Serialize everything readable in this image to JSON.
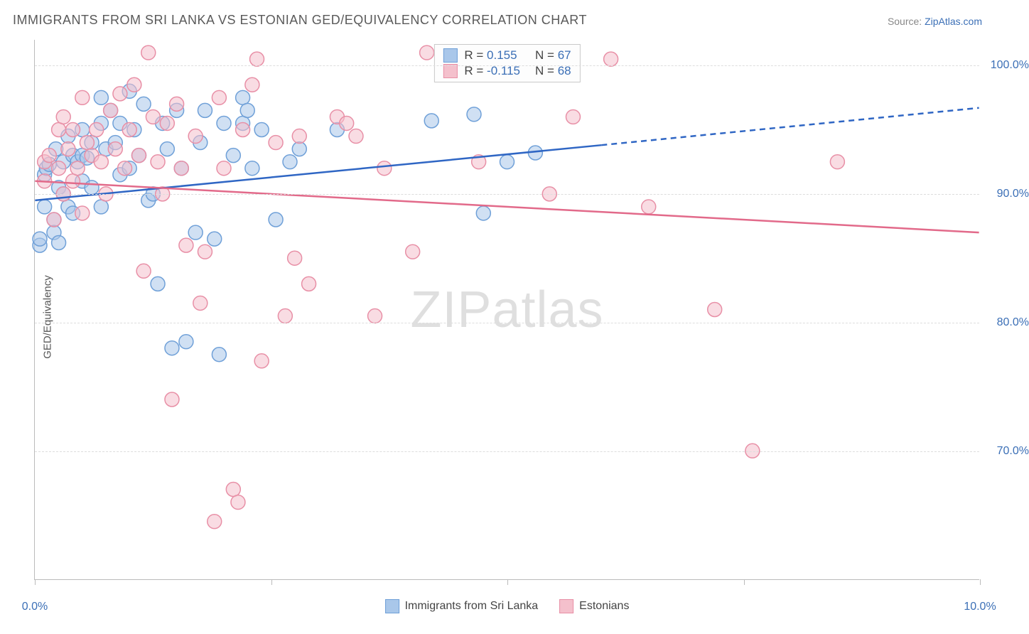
{
  "title": "IMMIGRANTS FROM SRI LANKA VS ESTONIAN GED/EQUIVALENCY CORRELATION CHART",
  "source_label": "Source: ",
  "source_link": "ZipAtlas.com",
  "ylabel": "GED/Equivalency",
  "watermark_a": "ZIP",
  "watermark_b": "atlas",
  "chart": {
    "type": "scatter",
    "background_color": "#ffffff",
    "grid_color": "#dddddd",
    "axis_color": "#bbbbbb",
    "text_color": "#555555",
    "tick_label_color": "#3b6fb6",
    "xlim": [
      0,
      10
    ],
    "ylim": [
      60,
      102
    ],
    "xtick_positions": [
      0,
      2.5,
      5.0,
      7.5,
      10.0
    ],
    "xtick_labels": [
      "0.0%",
      "",
      "",
      "",
      "10.0%"
    ],
    "ytick_positions": [
      70,
      80,
      90,
      100
    ],
    "ytick_labels": [
      "70.0%",
      "80.0%",
      "90.0%",
      "100.0%"
    ],
    "marker_radius": 10,
    "marker_opacity": 0.55,
    "line_width": 2.5,
    "title_fontsize": 18,
    "tick_fontsize": 16,
    "label_fontsize": 15
  },
  "series": [
    {
      "name": "Immigrants from Sri Lanka",
      "color_fill": "#a9c7ea",
      "color_stroke": "#6fa0d8",
      "line_color": "#2f66c4",
      "R_label": "R = ",
      "R": "0.155",
      "N_label": "N = ",
      "N": "67",
      "trend": {
        "x1": 0,
        "y1": 89.5,
        "x2_solid": 6.0,
        "y2_solid": 93.8,
        "x2": 10.0,
        "y2": 96.7
      },
      "points": [
        [
          0.05,
          86.0
        ],
        [
          0.05,
          86.5
        ],
        [
          0.1,
          89.0
        ],
        [
          0.1,
          91.5
        ],
        [
          0.12,
          92.0
        ],
        [
          0.15,
          92.3
        ],
        [
          0.2,
          88.0
        ],
        [
          0.2,
          87.0
        ],
        [
          0.22,
          93.5
        ],
        [
          0.25,
          90.5
        ],
        [
          0.25,
          86.2
        ],
        [
          0.3,
          92.5
        ],
        [
          0.3,
          90.0
        ],
        [
          0.35,
          94.5
        ],
        [
          0.35,
          89.0
        ],
        [
          0.4,
          93.0
        ],
        [
          0.4,
          88.5
        ],
        [
          0.45,
          92.5
        ],
        [
          0.5,
          95.0
        ],
        [
          0.5,
          93.0
        ],
        [
          0.5,
          91.0
        ],
        [
          0.55,
          92.8
        ],
        [
          0.6,
          94.0
        ],
        [
          0.6,
          90.5
        ],
        [
          0.7,
          97.5
        ],
        [
          0.7,
          95.5
        ],
        [
          0.7,
          89.0
        ],
        [
          0.75,
          93.5
        ],
        [
          0.8,
          96.5
        ],
        [
          0.85,
          94.0
        ],
        [
          0.9,
          95.5
        ],
        [
          0.9,
          91.5
        ],
        [
          1.0,
          98.0
        ],
        [
          1.0,
          92.0
        ],
        [
          1.05,
          95.0
        ],
        [
          1.1,
          93.0
        ],
        [
          1.15,
          97.0
        ],
        [
          1.2,
          89.5
        ],
        [
          1.25,
          90.0
        ],
        [
          1.3,
          83.0
        ],
        [
          1.35,
          95.5
        ],
        [
          1.4,
          93.5
        ],
        [
          1.45,
          78.0
        ],
        [
          1.5,
          96.5
        ],
        [
          1.55,
          92.0
        ],
        [
          1.6,
          78.5
        ],
        [
          1.7,
          87.0
        ],
        [
          1.75,
          94.0
        ],
        [
          1.8,
          96.5
        ],
        [
          1.9,
          86.5
        ],
        [
          1.95,
          77.5
        ],
        [
          2.0,
          95.5
        ],
        [
          2.1,
          93.0
        ],
        [
          2.2,
          95.5
        ],
        [
          2.2,
          97.5
        ],
        [
          2.25,
          96.5
        ],
        [
          2.3,
          92.0
        ],
        [
          2.4,
          95.0
        ],
        [
          2.55,
          88.0
        ],
        [
          2.7,
          92.5
        ],
        [
          2.8,
          93.5
        ],
        [
          3.2,
          95.0
        ],
        [
          4.2,
          95.7
        ],
        [
          4.65,
          96.2
        ],
        [
          4.75,
          88.5
        ],
        [
          5.0,
          92.5
        ],
        [
          5.3,
          93.2
        ]
      ]
    },
    {
      "name": "Estonians",
      "color_fill": "#f4c0cc",
      "color_stroke": "#e88fa6",
      "line_color": "#e26a8a",
      "R_label": "R = ",
      "R": "-0.115",
      "N_label": "N = ",
      "N": "68",
      "trend": {
        "x1": 0,
        "y1": 91.0,
        "x2_solid": 10.0,
        "y2_solid": 87.0,
        "x2": 10.0,
        "y2": 87.0
      },
      "points": [
        [
          0.1,
          91.0
        ],
        [
          0.1,
          92.5
        ],
        [
          0.15,
          93.0
        ],
        [
          0.2,
          88.0
        ],
        [
          0.25,
          95.0
        ],
        [
          0.25,
          92.0
        ],
        [
          0.3,
          96.0
        ],
        [
          0.3,
          90.0
        ],
        [
          0.35,
          93.5
        ],
        [
          0.4,
          95.0
        ],
        [
          0.4,
          91.0
        ],
        [
          0.45,
          92.0
        ],
        [
          0.5,
          97.5
        ],
        [
          0.5,
          88.5
        ],
        [
          0.55,
          94.0
        ],
        [
          0.6,
          93.0
        ],
        [
          0.65,
          95.0
        ],
        [
          0.7,
          92.5
        ],
        [
          0.75,
          90.0
        ],
        [
          0.8,
          96.5
        ],
        [
          0.85,
          93.5
        ],
        [
          0.9,
          97.8
        ],
        [
          0.95,
          92.0
        ],
        [
          1.0,
          95.0
        ],
        [
          1.05,
          98.5
        ],
        [
          1.1,
          93.0
        ],
        [
          1.15,
          84.0
        ],
        [
          1.2,
          101.0
        ],
        [
          1.25,
          96.0
        ],
        [
          1.3,
          92.5
        ],
        [
          1.35,
          90.0
        ],
        [
          1.4,
          95.5
        ],
        [
          1.45,
          74.0
        ],
        [
          1.5,
          97.0
        ],
        [
          1.55,
          92.0
        ],
        [
          1.6,
          86.0
        ],
        [
          1.7,
          94.5
        ],
        [
          1.75,
          81.5
        ],
        [
          1.8,
          85.5
        ],
        [
          1.9,
          64.5
        ],
        [
          1.95,
          97.5
        ],
        [
          2.0,
          92.0
        ],
        [
          2.1,
          67.0
        ],
        [
          2.15,
          66.0
        ],
        [
          2.2,
          95.0
        ],
        [
          2.3,
          98.5
        ],
        [
          2.35,
          100.5
        ],
        [
          2.4,
          77.0
        ],
        [
          2.55,
          94.0
        ],
        [
          2.65,
          80.5
        ],
        [
          2.75,
          85.0
        ],
        [
          2.8,
          94.5
        ],
        [
          2.9,
          83.0
        ],
        [
          3.2,
          96.0
        ],
        [
          3.3,
          95.5
        ],
        [
          3.4,
          94.5
        ],
        [
          3.6,
          80.5
        ],
        [
          3.7,
          92.0
        ],
        [
          4.0,
          85.5
        ],
        [
          4.15,
          101.0
        ],
        [
          4.7,
          92.5
        ],
        [
          5.45,
          90.0
        ],
        [
          5.7,
          96.0
        ],
        [
          6.1,
          100.5
        ],
        [
          6.5,
          89.0
        ],
        [
          7.2,
          81.0
        ],
        [
          7.6,
          70.0
        ],
        [
          8.5,
          92.5
        ]
      ]
    }
  ],
  "legend": {
    "items": [
      "Immigrants from Sri Lanka",
      "Estonians"
    ]
  }
}
